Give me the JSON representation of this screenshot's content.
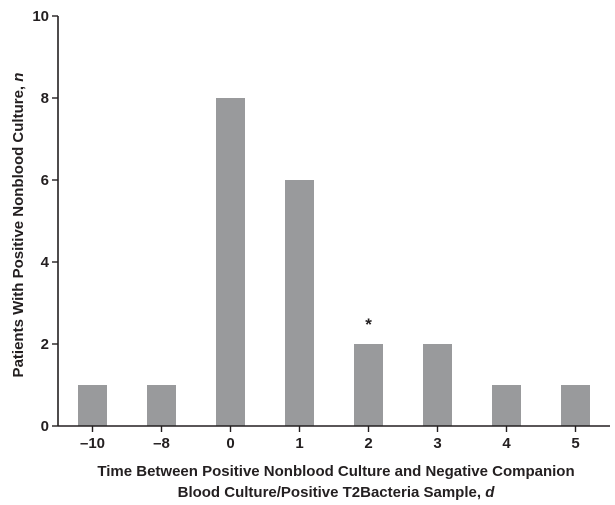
{
  "chart_data": {
    "type": "bar",
    "categories": [
      "–10",
      "–8",
      "0",
      "1",
      "2",
      "3",
      "4",
      "5"
    ],
    "values": [
      1,
      1,
      8,
      6,
      2,
      2,
      1,
      1
    ],
    "ylabel": "Patients With Positive Nonblood Culture,",
    "ylabel_unit": "n",
    "xlabel_line1": "Time Between Positive Nonblood Culture and Negative Companion",
    "xlabel_line2": "Blood Culture/Positive T2Bacteria Sample,",
    "xlabel_unit": "d",
    "ylim": [
      0,
      10
    ],
    "yticks": [
      "0",
      "2",
      "4",
      "6",
      "8",
      "10"
    ],
    "annotations": [
      {
        "category": "2",
        "text": "*"
      }
    ],
    "grid": false,
    "legend": "none",
    "bar_color": "#999a9c",
    "axis_color": "#231f20"
  }
}
